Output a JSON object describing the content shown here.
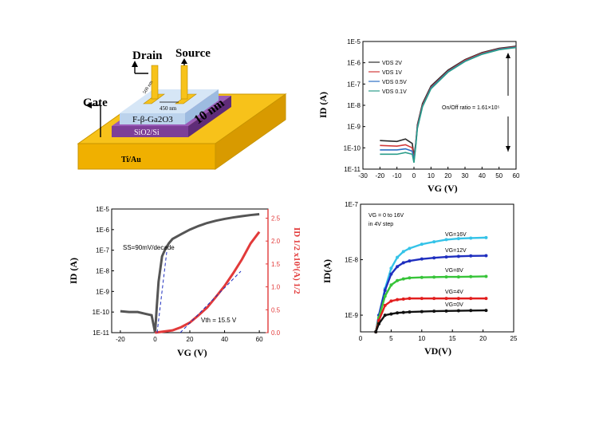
{
  "schematic": {
    "drain": "Drain",
    "source": "Source",
    "gate": "Gate",
    "dim1": "500 nm",
    "dim2": "450 nm",
    "thickness": "10 nm",
    "channel": "F-β-Ga2O3",
    "dielectric": "SiO2/Si",
    "contact": "Ti/Au",
    "colors": {
      "gold": "#f7c21a",
      "purple": "#7d3f98",
      "light": "#bcd3ec"
    }
  },
  "chart_data": [
    {
      "type": "line",
      "id": "transfer-vds",
      "xlabel": "VG (V)",
      "ylabel": "ID (A)",
      "xlim": [
        -30,
        60
      ],
      "ylim_log": [
        1e-11,
        1e-05
      ],
      "xticks": [
        "-30",
        "-20",
        "-10",
        "0",
        "10",
        "20",
        "30",
        "40",
        "50",
        "60"
      ],
      "yticks": [
        "1E-11",
        "1E-10",
        "1E-9",
        "1E-8",
        "1E-7",
        "1E-6",
        "1E-5"
      ],
      "annotation": "On/Off ratio = 1.61×10⁵",
      "legend_position": "top-left",
      "series": [
        {
          "name": "VDS 2V",
          "color": "#2b2b2b",
          "x": [
            -20,
            -10,
            -5,
            -1,
            0,
            1,
            2,
            5,
            10,
            20,
            30,
            40,
            50,
            60
          ],
          "y": [
            2.2e-10,
            2e-10,
            2.6e-10,
            1.6e-10,
            4e-11,
            1.5e-10,
            1.2e-09,
            1.2e-08,
            8e-08,
            4.5e-07,
            1.4e-06,
            3e-06,
            4.8e-06,
            6e-06
          ]
        },
        {
          "name": "VDS 1V",
          "color": "#d23a3a",
          "x": [
            -20,
            -10,
            -5,
            -1,
            0,
            1,
            2,
            5,
            10,
            20,
            30,
            40,
            50,
            60
          ],
          "y": [
            1.3e-10,
            1.2e-10,
            1.4e-10,
            1e-10,
            3e-11,
            1.3e-10,
            1e-09,
            1e-08,
            7e-08,
            4e-07,
            1.3e-06,
            2.8e-06,
            4.5e-06,
            5.6e-06
          ]
        },
        {
          "name": "VDS 0.5V",
          "color": "#2d6fc4",
          "x": [
            -20,
            -10,
            -5,
            -1,
            0,
            1,
            2,
            5,
            10,
            20,
            30,
            40,
            50,
            60
          ],
          "y": [
            8e-11,
            8e-11,
            9e-11,
            7e-11,
            2.5e-11,
            1.2e-10,
            9e-10,
            9e-09,
            6.5e-08,
            3.8e-07,
            1.2e-06,
            2.6e-06,
            4.3e-06,
            5.4e-06
          ]
        },
        {
          "name": "VDS 0.1V",
          "color": "#2a9d8a",
          "x": [
            -20,
            -10,
            -5,
            -1,
            0,
            1,
            2,
            5,
            10,
            20,
            30,
            40,
            50,
            60
          ],
          "y": [
            5e-11,
            5e-11,
            6e-11,
            5e-11,
            2e-11,
            1.1e-10,
            8e-10,
            8.5e-09,
            6e-08,
            3.6e-07,
            1.15e-06,
            2.5e-06,
            4.1e-06,
            5.2e-06
          ]
        }
      ]
    },
    {
      "type": "line",
      "id": "transfer-sqrt",
      "xlabel": "VG (V)",
      "ylabel": "ID (A)",
      "y2label": "ID 1/2 x10³(A) 1/2",
      "xlim": [
        -25,
        65
      ],
      "xticks": [
        "-20",
        "0",
        "20",
        "40",
        "60"
      ],
      "ylim_log": [
        1e-11,
        1e-05
      ],
      "yticks": [
        "1E-11",
        "1E-10",
        "1E-9",
        "1E-8",
        "1E-7",
        "1E-6",
        "1E-5"
      ],
      "y2lim": [
        0,
        2.7
      ],
      "y2ticks": [
        "0.0",
        "0.5",
        "1.0",
        "1.5",
        "2.0",
        "2.5"
      ],
      "annotations": [
        "SS=90mV/decade",
        "Vth = 15.5 V"
      ],
      "series": [
        {
          "name": "ID",
          "color": "#555555",
          "x": [
            -20,
            -15,
            -10,
            -5,
            -2,
            0,
            1,
            2,
            4,
            6,
            8,
            10,
            15,
            20,
            25,
            30,
            35,
            40,
            45,
            50,
            55,
            60
          ],
          "y": [
            1.1e-10,
            1e-10,
            1e-10,
            8e-11,
            7e-11,
            1e-11,
            2e-10,
            3e-09,
            5e-08,
            1.2e-07,
            2.2e-07,
            3.5e-07,
            6e-07,
            1e-06,
            1.5e-06,
            2.1e-06,
            2.7e-06,
            3.3e-06,
            3.9e-06,
            4.5e-06,
            5.1e-06,
            5.6e-06
          ]
        },
        {
          "name": "ID1/2",
          "color": "#e23a3a",
          "x": [
            0,
            10,
            15,
            20,
            25,
            30,
            35,
            40,
            45,
            50,
            55,
            60
          ],
          "y2": [
            0,
            0.05,
            0.12,
            0.22,
            0.38,
            0.55,
            0.78,
            1.02,
            1.3,
            1.6,
            1.95,
            2.2
          ]
        }
      ]
    },
    {
      "type": "line",
      "id": "output",
      "xlabel": "VD(V)",
      "ylabel": "ID(A)",
      "xlim": [
        0,
        25
      ],
      "xticks": [
        "0",
        "5",
        "10",
        "15",
        "20",
        "25"
      ],
      "ylim_log": [
        5e-10,
        1e-07
      ],
      "yticks": [
        "1E-9",
        "1E-8",
        "1E-7"
      ],
      "annotations": [
        "VG = 0 to 16V",
        "in 4V step"
      ],
      "series": [
        {
          "name": "VG=16V",
          "color": "#35c3e8",
          "x": [
            2.5,
            3,
            4,
            5,
            6,
            7,
            8,
            10,
            12,
            14,
            16,
            18,
            20.5
          ],
          "y": [
            5e-10,
            1e-09,
            3e-09,
            7e-09,
            1.1e-08,
            1.4e-08,
            1.6e-08,
            1.9e-08,
            2.1e-08,
            2.3e-08,
            2.4e-08,
            2.45e-08,
            2.5e-08
          ]
        },
        {
          "name": "VG=12V",
          "color": "#1f2fbf",
          "x": [
            2.5,
            3,
            4,
            5,
            6,
            7,
            8,
            10,
            12,
            14,
            16,
            18,
            20.5
          ],
          "y": [
            5e-10,
            1e-09,
            2.8e-09,
            5.5e-09,
            7.5e-09,
            8.8e-09,
            9.5e-09,
            1.03e-08,
            1.08e-08,
            1.12e-08,
            1.15e-08,
            1.17e-08,
            1.18e-08
          ]
        },
        {
          "name": "VG=8V",
          "color": "#37c439",
          "x": [
            2.5,
            3,
            4,
            5,
            6,
            7,
            8,
            10,
            12,
            14,
            16,
            18,
            20.5
          ],
          "y": [
            5e-10,
            9e-10,
            2.2e-09,
            3.5e-09,
            4.2e-09,
            4.5e-09,
            4.7e-09,
            4.8e-09,
            4.85e-09,
            4.9e-09,
            4.9e-09,
            4.95e-09,
            5e-09
          ]
        },
        {
          "name": "VG=4V",
          "color": "#e21e1e",
          "x": [
            2.5,
            3,
            4,
            5,
            6,
            7,
            8,
            10,
            12,
            14,
            16,
            18,
            20.5
          ],
          "y": [
            5e-10,
            8e-10,
            1.5e-09,
            1.8e-09,
            1.9e-09,
            1.95e-09,
            2e-09,
            2e-09,
            2e-09,
            2e-09,
            2e-09,
            2e-09,
            2e-09
          ]
        },
        {
          "name": "VG=0V",
          "color": "#111111",
          "x": [
            2.5,
            3,
            4,
            5,
            6,
            7,
            8,
            10,
            12,
            14,
            16,
            18,
            20.5
          ],
          "y": [
            5e-10,
            7e-10,
            1e-09,
            1.05e-09,
            1.1e-09,
            1.12e-09,
            1.14e-09,
            1.16e-09,
            1.18e-09,
            1.19e-09,
            1.2e-09,
            1.21e-09,
            1.22e-09
          ]
        }
      ]
    }
  ]
}
